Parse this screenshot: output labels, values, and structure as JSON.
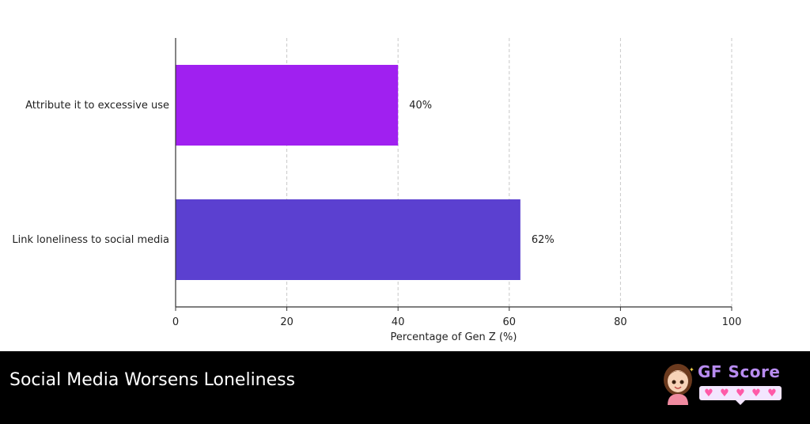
{
  "chart_data": {
    "type": "bar",
    "orientation": "horizontal",
    "categories": [
      "Attribute it to excessive use",
      "Link loneliness to social media"
    ],
    "values": [
      40,
      62
    ],
    "data_labels": [
      "40%",
      "62%"
    ],
    "colors": [
      "#a020f0",
      "#5b40d0"
    ],
    "xlabel": "Percentage of Gen Z (%)",
    "xlim": [
      0,
      100
    ],
    "xticks": [
      0,
      20,
      40,
      60,
      80,
      100
    ],
    "grid": "vertical dashed"
  },
  "footer": {
    "title": "Social Media Worsens Loneliness",
    "brand": "GF Score",
    "brand_color": "#b88cf0",
    "hearts": [
      "heart-icon",
      "heart-icon",
      "heart-icon",
      "heart-icon",
      "heart-icon"
    ],
    "heart_color": "#ff5aa8"
  }
}
